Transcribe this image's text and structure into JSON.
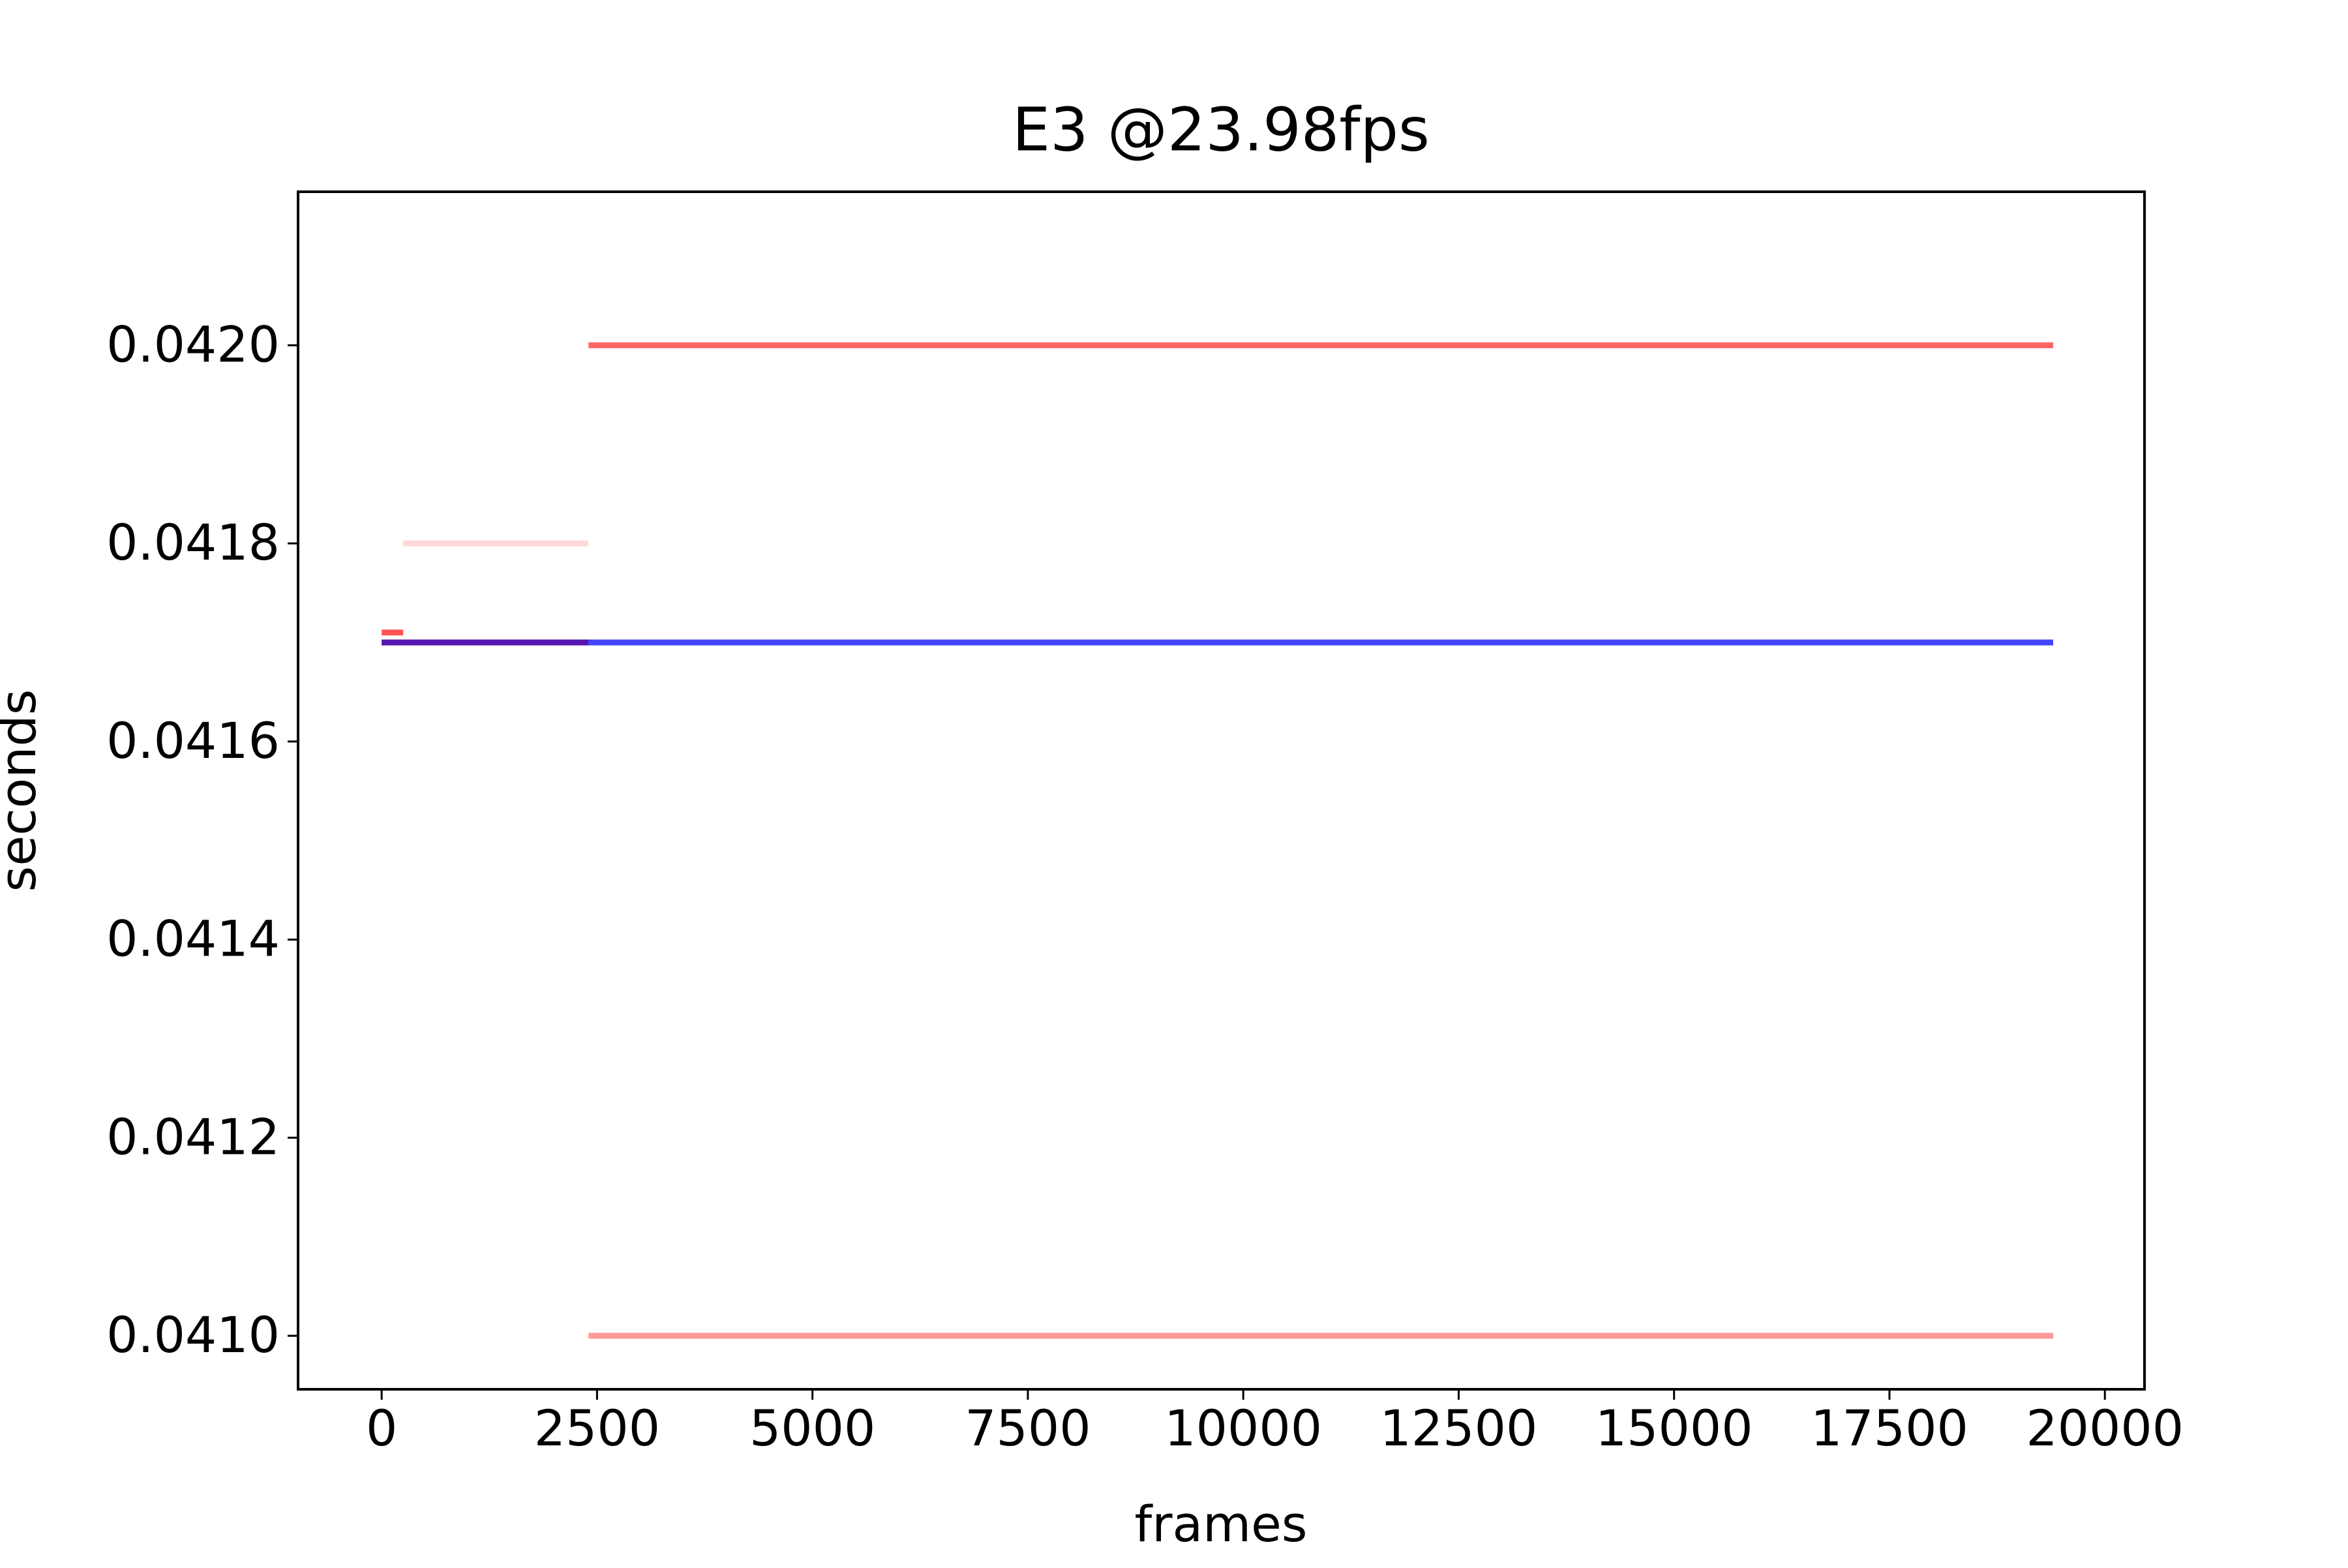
{
  "chart_data": {
    "type": "line",
    "title": "E3 @23.98fps",
    "xlabel": "frames",
    "ylabel": "seconds",
    "xlim": [
      -970,
      20460
    ],
    "xticks": [
      0,
      2500,
      5000,
      7500,
      10000,
      12500,
      15000,
      17500,
      20000
    ],
    "ylim": [
      0.040946,
      0.042155
    ],
    "yticks": [
      {
        "value": 0.041,
        "label": "0.0410"
      },
      0.0412,
      0.0414,
      0.0416,
      0.0418,
      {
        "value": 0.042,
        "label": "0.0420"
      }
    ],
    "grid": false,
    "series": [
      {
        "color": "#ff000099",
        "x": [
          2400,
          19400
        ],
        "values": [
          0.042,
          0.042
        ]
      },
      {
        "color": "#ff000066",
        "x": [
          2400,
          19400
        ],
        "values": [
          0.041,
          0.041
        ]
      },
      {
        "color": "#ff000026",
        "x": [
          250,
          2400
        ],
        "values": [
          0.0418,
          0.0418
        ]
      },
      {
        "color": "#ff0000aa",
        "x": [
          0,
          250
        ],
        "values": [
          0.04171,
          0.04171
        ]
      },
      {
        "color": "#0000ffbb",
        "x": [
          0,
          19400
        ],
        "values": [
          0.0417,
          0.0417
        ]
      },
      {
        "color": "#5a0a9acc",
        "x": [
          0,
          2400
        ],
        "values": [
          0.0417,
          0.0417
        ]
      }
    ]
  }
}
